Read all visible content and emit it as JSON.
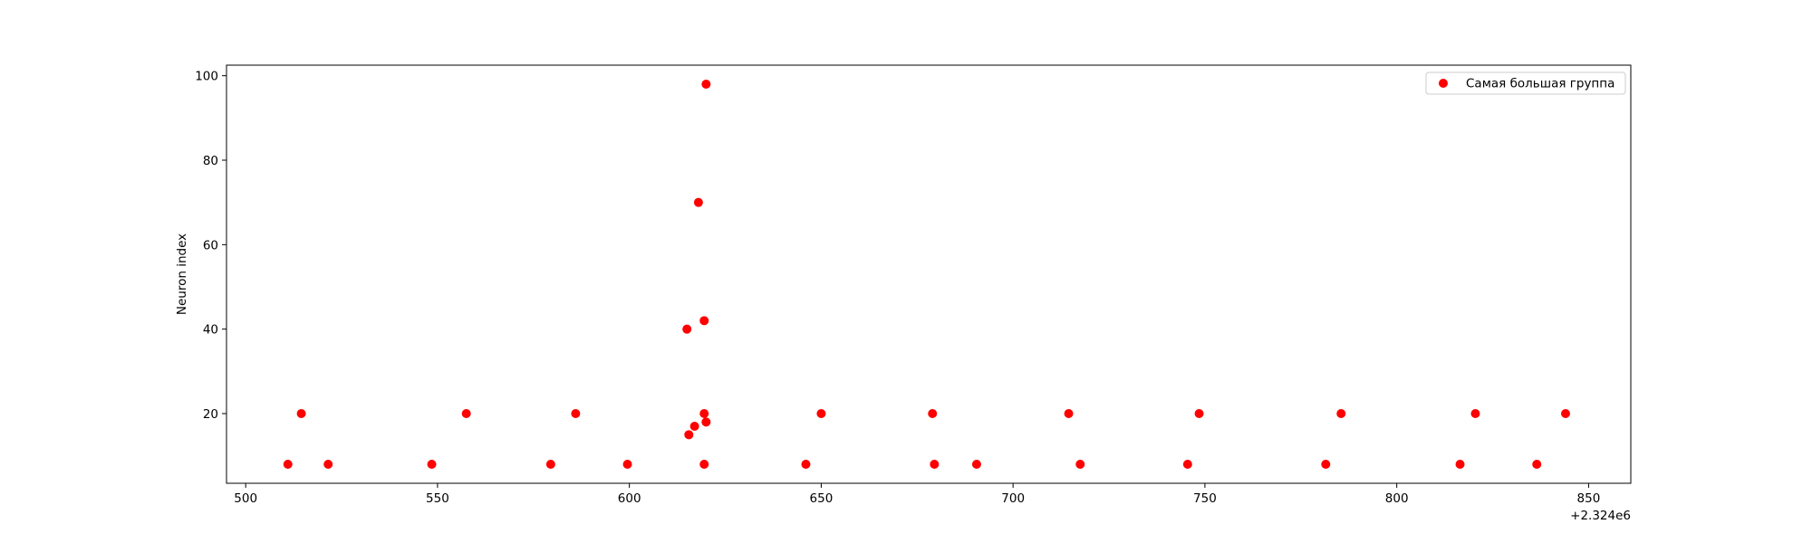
{
  "chart_data": {
    "type": "scatter",
    "title": "",
    "xlabel": "",
    "ylabel": "Neuron index",
    "x_offset_label": "+2.324e6",
    "x_ticks": [
      500,
      550,
      600,
      650,
      700,
      750,
      800,
      850
    ],
    "y_ticks": [
      20,
      40,
      60,
      80,
      100
    ],
    "xlim": [
      495,
      861
    ],
    "ylim": [
      3.5,
      102.5
    ],
    "grid": false,
    "legend_position": "top-right",
    "colors": {
      "marker": "#ff0000"
    },
    "series": [
      {
        "name": "Самая большая группа",
        "x": [
          511,
          521.5,
          548.5,
          579.5,
          599.5,
          619.5,
          646,
          679.5,
          690.5,
          717.5,
          745.5,
          781.5,
          816.5,
          836.5,
          514.5,
          557.5,
          586,
          619.5,
          650,
          679,
          714.5,
          748.5,
          785.5,
          820.5,
          844,
          615.5,
          617,
          620,
          615,
          619.5,
          618,
          620
        ],
        "y": [
          8,
          8,
          8,
          8,
          8,
          8,
          8,
          8,
          8,
          8,
          8,
          8,
          8,
          8,
          20,
          20,
          20,
          20,
          20,
          20,
          20,
          20,
          20,
          20,
          20,
          15,
          17,
          18,
          40,
          42,
          70,
          98
        ]
      }
    ]
  }
}
